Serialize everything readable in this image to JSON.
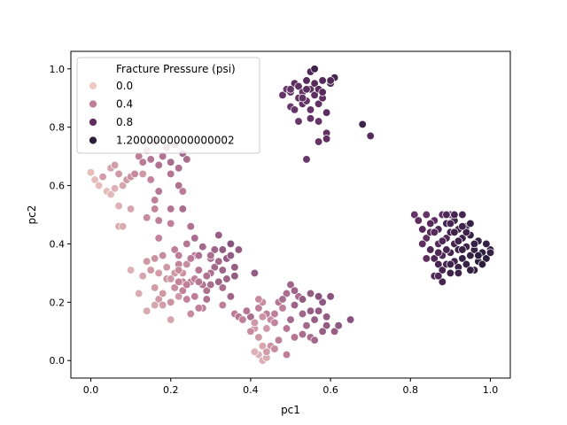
{
  "chart_data": {
    "type": "scatter",
    "title": "",
    "xlabel": "pc1",
    "ylabel": "pc2",
    "xlim": [
      -0.05,
      1.05
    ],
    "ylim": [
      -0.06,
      1.06
    ],
    "xticks": [
      "0.0",
      "0.2",
      "0.4",
      "0.6",
      "0.8",
      "1.0"
    ],
    "yticks": [
      "0.0",
      "0.2",
      "0.4",
      "0.6",
      "0.8",
      "1.0"
    ],
    "grid": false,
    "legend": {
      "title": "Fracture Pressure (psi)",
      "placement": "top-left",
      "entries": [
        {
          "label": "0.0",
          "color": "#eccac3"
        },
        {
          "label": "0.4",
          "color": "#c07f98"
        },
        {
          "label": "0.8",
          "color": "#5f2f62"
        },
        {
          "label": "1.2000000000000002",
          "color": "#2d1e3e"
        }
      ]
    },
    "colormap": {
      "min": 0.0,
      "max": 1.2,
      "stops": [
        "#eccac3",
        "#c07f98",
        "#7b4a79",
        "#5f2f62",
        "#2d1e3e"
      ]
    },
    "points": [
      [
        0.0,
        0.645,
        0.05
      ],
      [
        0.01,
        0.62,
        0.05
      ],
      [
        0.02,
        0.6,
        0.05
      ],
      [
        0.03,
        0.63,
        0.08
      ],
      [
        0.04,
        0.58,
        0.06
      ],
      [
        0.05,
        0.57,
        0.07
      ],
      [
        0.06,
        0.59,
        0.1
      ],
      [
        0.05,
        0.66,
        0.15
      ],
      [
        0.06,
        0.67,
        0.18
      ],
      [
        0.07,
        0.64,
        0.2
      ],
      [
        0.08,
        0.6,
        0.15
      ],
      [
        0.09,
        0.62,
        0.2
      ],
      [
        0.1,
        0.63,
        0.22
      ],
      [
        0.11,
        0.64,
        0.26
      ],
      [
        0.03,
        0.63,
        0.18
      ],
      [
        0.07,
        0.46,
        0.12
      ],
      [
        0.08,
        0.46,
        0.12
      ],
      [
        0.07,
        0.53,
        0.1
      ],
      [
        0.1,
        0.52,
        0.14
      ],
      [
        0.13,
        0.64,
        0.2
      ],
      [
        0.12,
        0.7,
        0.3
      ],
      [
        0.13,
        0.68,
        0.32
      ],
      [
        0.14,
        0.72,
        0.3
      ],
      [
        0.15,
        0.69,
        0.35
      ],
      [
        0.16,
        0.75,
        0.4
      ],
      [
        0.17,
        0.67,
        0.38
      ],
      [
        0.18,
        0.7,
        0.36
      ],
      [
        0.19,
        0.73,
        0.42
      ],
      [
        0.2,
        0.68,
        0.4
      ],
      [
        0.21,
        0.74,
        0.45
      ],
      [
        0.22,
        0.66,
        0.38
      ],
      [
        0.23,
        0.71,
        0.44
      ],
      [
        0.24,
        0.69,
        0.4
      ],
      [
        0.15,
        0.62,
        0.28
      ],
      [
        0.17,
        0.58,
        0.34
      ],
      [
        0.2,
        0.64,
        0.35
      ],
      [
        0.22,
        0.6,
        0.38
      ],
      [
        0.16,
        0.55,
        0.3
      ],
      [
        0.2,
        0.52,
        0.35
      ],
      [
        0.17,
        0.48,
        0.3
      ],
      [
        0.14,
        0.49,
        0.25
      ],
      [
        0.16,
        0.52,
        0.28
      ],
      [
        0.23,
        0.58,
        0.32
      ],
      [
        0.2,
        0.47,
        0.3
      ],
      [
        0.23,
        0.52,
        0.4
      ],
      [
        0.25,
        0.46,
        0.38
      ],
      [
        0.1,
        0.31,
        0.1
      ],
      [
        0.12,
        0.23,
        0.12
      ],
      [
        0.13,
        0.29,
        0.15
      ],
      [
        0.14,
        0.17,
        0.12
      ],
      [
        0.15,
        0.31,
        0.2
      ],
      [
        0.16,
        0.25,
        0.18
      ],
      [
        0.17,
        0.21,
        0.2
      ],
      [
        0.18,
        0.36,
        0.25
      ],
      [
        0.19,
        0.28,
        0.22
      ],
      [
        0.2,
        0.14,
        0.15
      ],
      [
        0.21,
        0.25,
        0.25
      ],
      [
        0.22,
        0.33,
        0.28
      ],
      [
        0.23,
        0.3,
        0.22
      ],
      [
        0.24,
        0.21,
        0.28
      ],
      [
        0.25,
        0.27,
        0.3
      ],
      [
        0.26,
        0.36,
        0.32
      ],
      [
        0.27,
        0.31,
        0.35
      ],
      [
        0.28,
        0.18,
        0.3
      ],
      [
        0.29,
        0.24,
        0.38
      ],
      [
        0.3,
        0.35,
        0.4
      ],
      [
        0.31,
        0.32,
        0.42
      ],
      [
        0.32,
        0.27,
        0.45
      ],
      [
        0.33,
        0.25,
        0.4
      ],
      [
        0.34,
        0.35,
        0.5
      ],
      [
        0.35,
        0.22,
        0.45
      ],
      [
        0.36,
        0.32,
        0.48
      ],
      [
        0.37,
        0.38,
        0.5
      ],
      [
        0.18,
        0.19,
        0.18
      ],
      [
        0.21,
        0.3,
        0.2
      ],
      [
        0.24,
        0.33,
        0.25
      ],
      [
        0.26,
        0.22,
        0.3
      ],
      [
        0.28,
        0.26,
        0.35
      ],
      [
        0.3,
        0.3,
        0.38
      ],
      [
        0.32,
        0.34,
        0.42
      ],
      [
        0.25,
        0.16,
        0.25
      ],
      [
        0.27,
        0.18,
        0.3
      ],
      [
        0.22,
        0.22,
        0.2
      ],
      [
        0.2,
        0.2,
        0.22
      ],
      [
        0.23,
        0.27,
        0.28
      ],
      [
        0.26,
        0.28,
        0.3
      ],
      [
        0.29,
        0.21,
        0.38
      ],
      [
        0.31,
        0.38,
        0.45
      ],
      [
        0.33,
        0.38,
        0.5
      ],
      [
        0.35,
        0.4,
        0.55
      ],
      [
        0.28,
        0.39,
        0.42
      ],
      [
        0.24,
        0.4,
        0.35
      ],
      [
        0.21,
        0.38,
        0.3
      ],
      [
        0.17,
        0.42,
        0.28
      ],
      [
        0.16,
        0.35,
        0.22
      ],
      [
        0.14,
        0.34,
        0.2
      ],
      [
        0.17,
        0.3,
        0.18
      ],
      [
        0.19,
        0.32,
        0.2
      ],
      [
        0.22,
        0.36,
        0.3
      ],
      [
        0.25,
        0.35,
        0.32
      ],
      [
        0.27,
        0.36,
        0.38
      ],
      [
        0.3,
        0.36,
        0.4
      ],
      [
        0.33,
        0.31,
        0.45
      ],
      [
        0.35,
        0.36,
        0.5
      ],
      [
        0.32,
        0.43,
        0.48
      ],
      [
        0.26,
        0.42,
        0.4
      ],
      [
        0.22,
        0.31,
        0.25
      ],
      [
        0.2,
        0.28,
        0.2
      ],
      [
        0.18,
        0.23,
        0.2
      ],
      [
        0.16,
        0.19,
        0.15
      ],
      [
        0.23,
        0.24,
        0.28
      ],
      [
        0.3,
        0.26,
        0.4
      ],
      [
        0.34,
        0.28,
        0.45
      ],
      [
        0.36,
        0.29,
        0.5
      ],
      [
        0.29,
        0.29,
        0.38
      ],
      [
        0.27,
        0.27,
        0.35
      ],
      [
        0.24,
        0.26,
        0.3
      ],
      [
        0.22,
        0.27,
        0.28
      ],
      [
        0.33,
        0.19,
        0.3
      ],
      [
        0.36,
        0.16,
        0.32
      ],
      [
        0.37,
        0.15,
        0.35
      ],
      [
        0.38,
        0.14,
        0.3
      ],
      [
        0.4,
        0.15,
        0.4
      ],
      [
        0.41,
        0.3,
        0.5
      ],
      [
        0.41,
        0.11,
        0.2
      ],
      [
        0.42,
        0.18,
        0.3
      ],
      [
        0.43,
        0.2,
        0.25
      ],
      [
        0.42,
        0.08,
        0.2
      ],
      [
        0.43,
        0.05,
        0.15
      ],
      [
        0.42,
        0.02,
        0.1
      ],
      [
        0.43,
        0.0,
        0.1
      ],
      [
        0.44,
        0.01,
        0.12
      ],
      [
        0.41,
        0.03,
        0.1
      ],
      [
        0.44,
        0.11,
        0.2
      ],
      [
        0.45,
        0.14,
        0.25
      ],
      [
        0.46,
        0.16,
        0.3
      ],
      [
        0.47,
        0.2,
        0.35
      ],
      [
        0.48,
        0.18,
        0.3
      ],
      [
        0.49,
        0.23,
        0.4
      ],
      [
        0.5,
        0.14,
        0.42
      ],
      [
        0.51,
        0.19,
        0.45
      ],
      [
        0.52,
        0.22,
        0.4
      ],
      [
        0.53,
        0.16,
        0.45
      ],
      [
        0.54,
        0.12,
        0.42
      ],
      [
        0.55,
        0.08,
        0.4
      ],
      [
        0.56,
        0.14,
        0.48
      ],
      [
        0.57,
        0.17,
        0.5
      ],
      [
        0.58,
        0.2,
        0.52
      ],
      [
        0.59,
        0.12,
        0.5
      ],
      [
        0.6,
        0.22,
        0.55
      ],
      [
        0.61,
        0.1,
        0.48
      ],
      [
        0.62,
        0.12,
        0.52
      ],
      [
        0.65,
        0.14,
        0.55
      ],
      [
        0.58,
        0.1,
        0.48
      ],
      [
        0.55,
        0.23,
        0.5
      ],
      [
        0.5,
        0.26,
        0.45
      ],
      [
        0.48,
        0.21,
        0.4
      ],
      [
        0.46,
        0.13,
        0.28
      ],
      [
        0.44,
        0.16,
        0.3
      ],
      [
        0.45,
        0.05,
        0.22
      ],
      [
        0.47,
        0.07,
        0.3
      ],
      [
        0.49,
        0.11,
        0.35
      ],
      [
        0.51,
        0.08,
        0.35
      ],
      [
        0.53,
        0.09,
        0.4
      ],
      [
        0.56,
        0.07,
        0.42
      ],
      [
        0.57,
        0.22,
        0.55
      ],
      [
        0.59,
        0.15,
        0.5
      ],
      [
        0.55,
        0.17,
        0.48
      ],
      [
        0.49,
        0.02,
        0.3
      ],
      [
        0.46,
        0.04,
        0.25
      ],
      [
        0.44,
        0.03,
        0.18
      ],
      [
        0.51,
        0.24,
        0.45
      ],
      [
        0.53,
        0.21,
        0.5
      ],
      [
        0.43,
        0.15,
        0.22
      ],
      [
        0.41,
        0.13,
        0.2
      ],
      [
        0.42,
        0.21,
        0.25
      ],
      [
        0.4,
        0.1,
        0.25
      ],
      [
        0.39,
        0.17,
        0.35
      ],
      [
        0.48,
        0.91,
        0.85
      ],
      [
        0.49,
        0.93,
        0.8
      ],
      [
        0.5,
        0.87,
        0.78
      ],
      [
        0.5,
        0.92,
        0.82
      ],
      [
        0.51,
        0.95,
        0.9
      ],
      [
        0.52,
        0.9,
        0.85
      ],
      [
        0.52,
        0.94,
        0.9
      ],
      [
        0.53,
        0.88,
        0.88
      ],
      [
        0.53,
        0.92,
        0.82
      ],
      [
        0.54,
        0.96,
        0.95
      ],
      [
        0.54,
        0.89,
        0.85
      ],
      [
        0.55,
        0.93,
        0.9
      ],
      [
        0.55,
        0.86,
        0.85
      ],
      [
        0.56,
        0.91,
        0.9
      ],
      [
        0.56,
        0.95,
        0.95
      ],
      [
        0.57,
        0.88,
        0.88
      ],
      [
        0.57,
        0.93,
        0.95
      ],
      [
        0.58,
        0.96,
        0.95
      ],
      [
        0.58,
        0.9,
        0.9
      ],
      [
        0.59,
        0.85,
        0.92
      ],
      [
        0.6,
        0.95,
        1.0
      ],
      [
        0.61,
        0.97,
        1.05
      ],
      [
        0.55,
        0.99,
        1.0
      ],
      [
        0.56,
        1.0,
        1.1
      ],
      [
        0.53,
        0.9,
        0.88
      ],
      [
        0.51,
        0.86,
        0.82
      ],
      [
        0.54,
        0.93,
        0.92
      ],
      [
        0.52,
        0.82,
        0.8
      ],
      [
        0.55,
        0.83,
        0.85
      ],
      [
        0.57,
        0.82,
        0.85
      ],
      [
        0.59,
        0.78,
        0.88
      ],
      [
        0.57,
        0.75,
        0.85
      ],
      [
        0.59,
        0.76,
        0.9
      ],
      [
        0.54,
        0.69,
        0.8
      ],
      [
        0.58,
        0.92,
        0.95
      ],
      [
        0.6,
        0.96,
        1.0
      ],
      [
        0.5,
        0.93,
        0.82
      ],
      [
        0.68,
        0.81,
        1.1
      ],
      [
        0.7,
        0.77,
        0.95
      ],
      [
        0.81,
        0.5,
        0.85
      ],
      [
        0.82,
        0.48,
        0.9
      ],
      [
        0.83,
        0.45,
        0.95
      ],
      [
        0.84,
        0.42,
        0.9
      ],
      [
        0.84,
        0.5,
        0.85
      ],
      [
        0.85,
        0.38,
        1.0
      ],
      [
        0.85,
        0.44,
        0.95
      ],
      [
        0.86,
        0.35,
        1.0
      ],
      [
        0.86,
        0.48,
        0.9
      ],
      [
        0.87,
        0.33,
        1.05
      ],
      [
        0.87,
        0.4,
        0.95
      ],
      [
        0.87,
        0.45,
        1.0
      ],
      [
        0.88,
        0.31,
        1.05
      ],
      [
        0.88,
        0.36,
        1.0
      ],
      [
        0.88,
        0.5,
        0.9
      ],
      [
        0.89,
        0.33,
        1.05
      ],
      [
        0.89,
        0.42,
        1.0
      ],
      [
        0.89,
        0.47,
        1.05
      ],
      [
        0.9,
        0.3,
        1.1
      ],
      [
        0.9,
        0.37,
        1.05
      ],
      [
        0.9,
        0.44,
        1.05
      ],
      [
        0.9,
        0.5,
        0.95
      ],
      [
        0.91,
        0.34,
        1.1
      ],
      [
        0.91,
        0.4,
        1.05
      ],
      [
        0.91,
        0.48,
        1.1
      ],
      [
        0.92,
        0.32,
        1.1
      ],
      [
        0.92,
        0.38,
        1.1
      ],
      [
        0.92,
        0.45,
        1.1
      ],
      [
        0.93,
        0.35,
        1.15
      ],
      [
        0.93,
        0.42,
        1.1
      ],
      [
        0.93,
        0.5,
        1.05
      ],
      [
        0.94,
        0.33,
        1.15
      ],
      [
        0.94,
        0.39,
        1.1
      ],
      [
        0.94,
        0.46,
        1.1
      ],
      [
        0.95,
        0.36,
        1.15
      ],
      [
        0.95,
        0.43,
        1.15
      ],
      [
        0.96,
        0.31,
        1.15
      ],
      [
        0.96,
        0.38,
        1.15
      ],
      [
        0.97,
        0.34,
        1.2
      ],
      [
        0.97,
        0.41,
        1.15
      ],
      [
        0.98,
        0.37,
        1.2
      ],
      [
        0.99,
        0.35,
        1.2
      ],
      [
        1.0,
        0.38,
        1.2
      ],
      [
        1.0,
        0.37,
        1.15
      ],
      [
        0.99,
        0.4,
        1.15
      ],
      [
        0.84,
        0.35,
        0.9
      ],
      [
        0.86,
        0.29,
        1.0
      ],
      [
        0.88,
        0.27,
        1.05
      ],
      [
        0.92,
        0.3,
        1.1
      ],
      [
        0.96,
        0.4,
        1.15
      ],
      [
        0.95,
        0.31,
        1.15
      ],
      [
        0.86,
        0.44,
        0.95
      ],
      [
        0.88,
        0.41,
        1.0
      ],
      [
        0.9,
        0.47,
        1.05
      ],
      [
        0.92,
        0.41,
        1.1
      ],
      [
        0.94,
        0.44,
        1.1
      ],
      [
        0.89,
        0.38,
        1.05
      ],
      [
        0.87,
        0.37,
        1.0
      ],
      [
        0.91,
        0.44,
        1.1
      ],
      [
        0.93,
        0.38,
        1.15
      ],
      [
        0.83,
        0.4,
        0.9
      ],
      [
        0.85,
        0.47,
        0.95
      ],
      [
        0.89,
        0.5,
        1.0
      ],
      [
        0.91,
        0.5,
        1.05
      ],
      [
        0.93,
        0.46,
        1.1
      ],
      [
        0.95,
        0.47,
        1.15
      ],
      [
        0.97,
        0.36,
        1.2
      ],
      [
        0.98,
        0.33,
        1.2
      ],
      [
        0.87,
        0.29,
        1.0
      ],
      [
        0.9,
        0.33,
        1.1
      ]
    ]
  }
}
